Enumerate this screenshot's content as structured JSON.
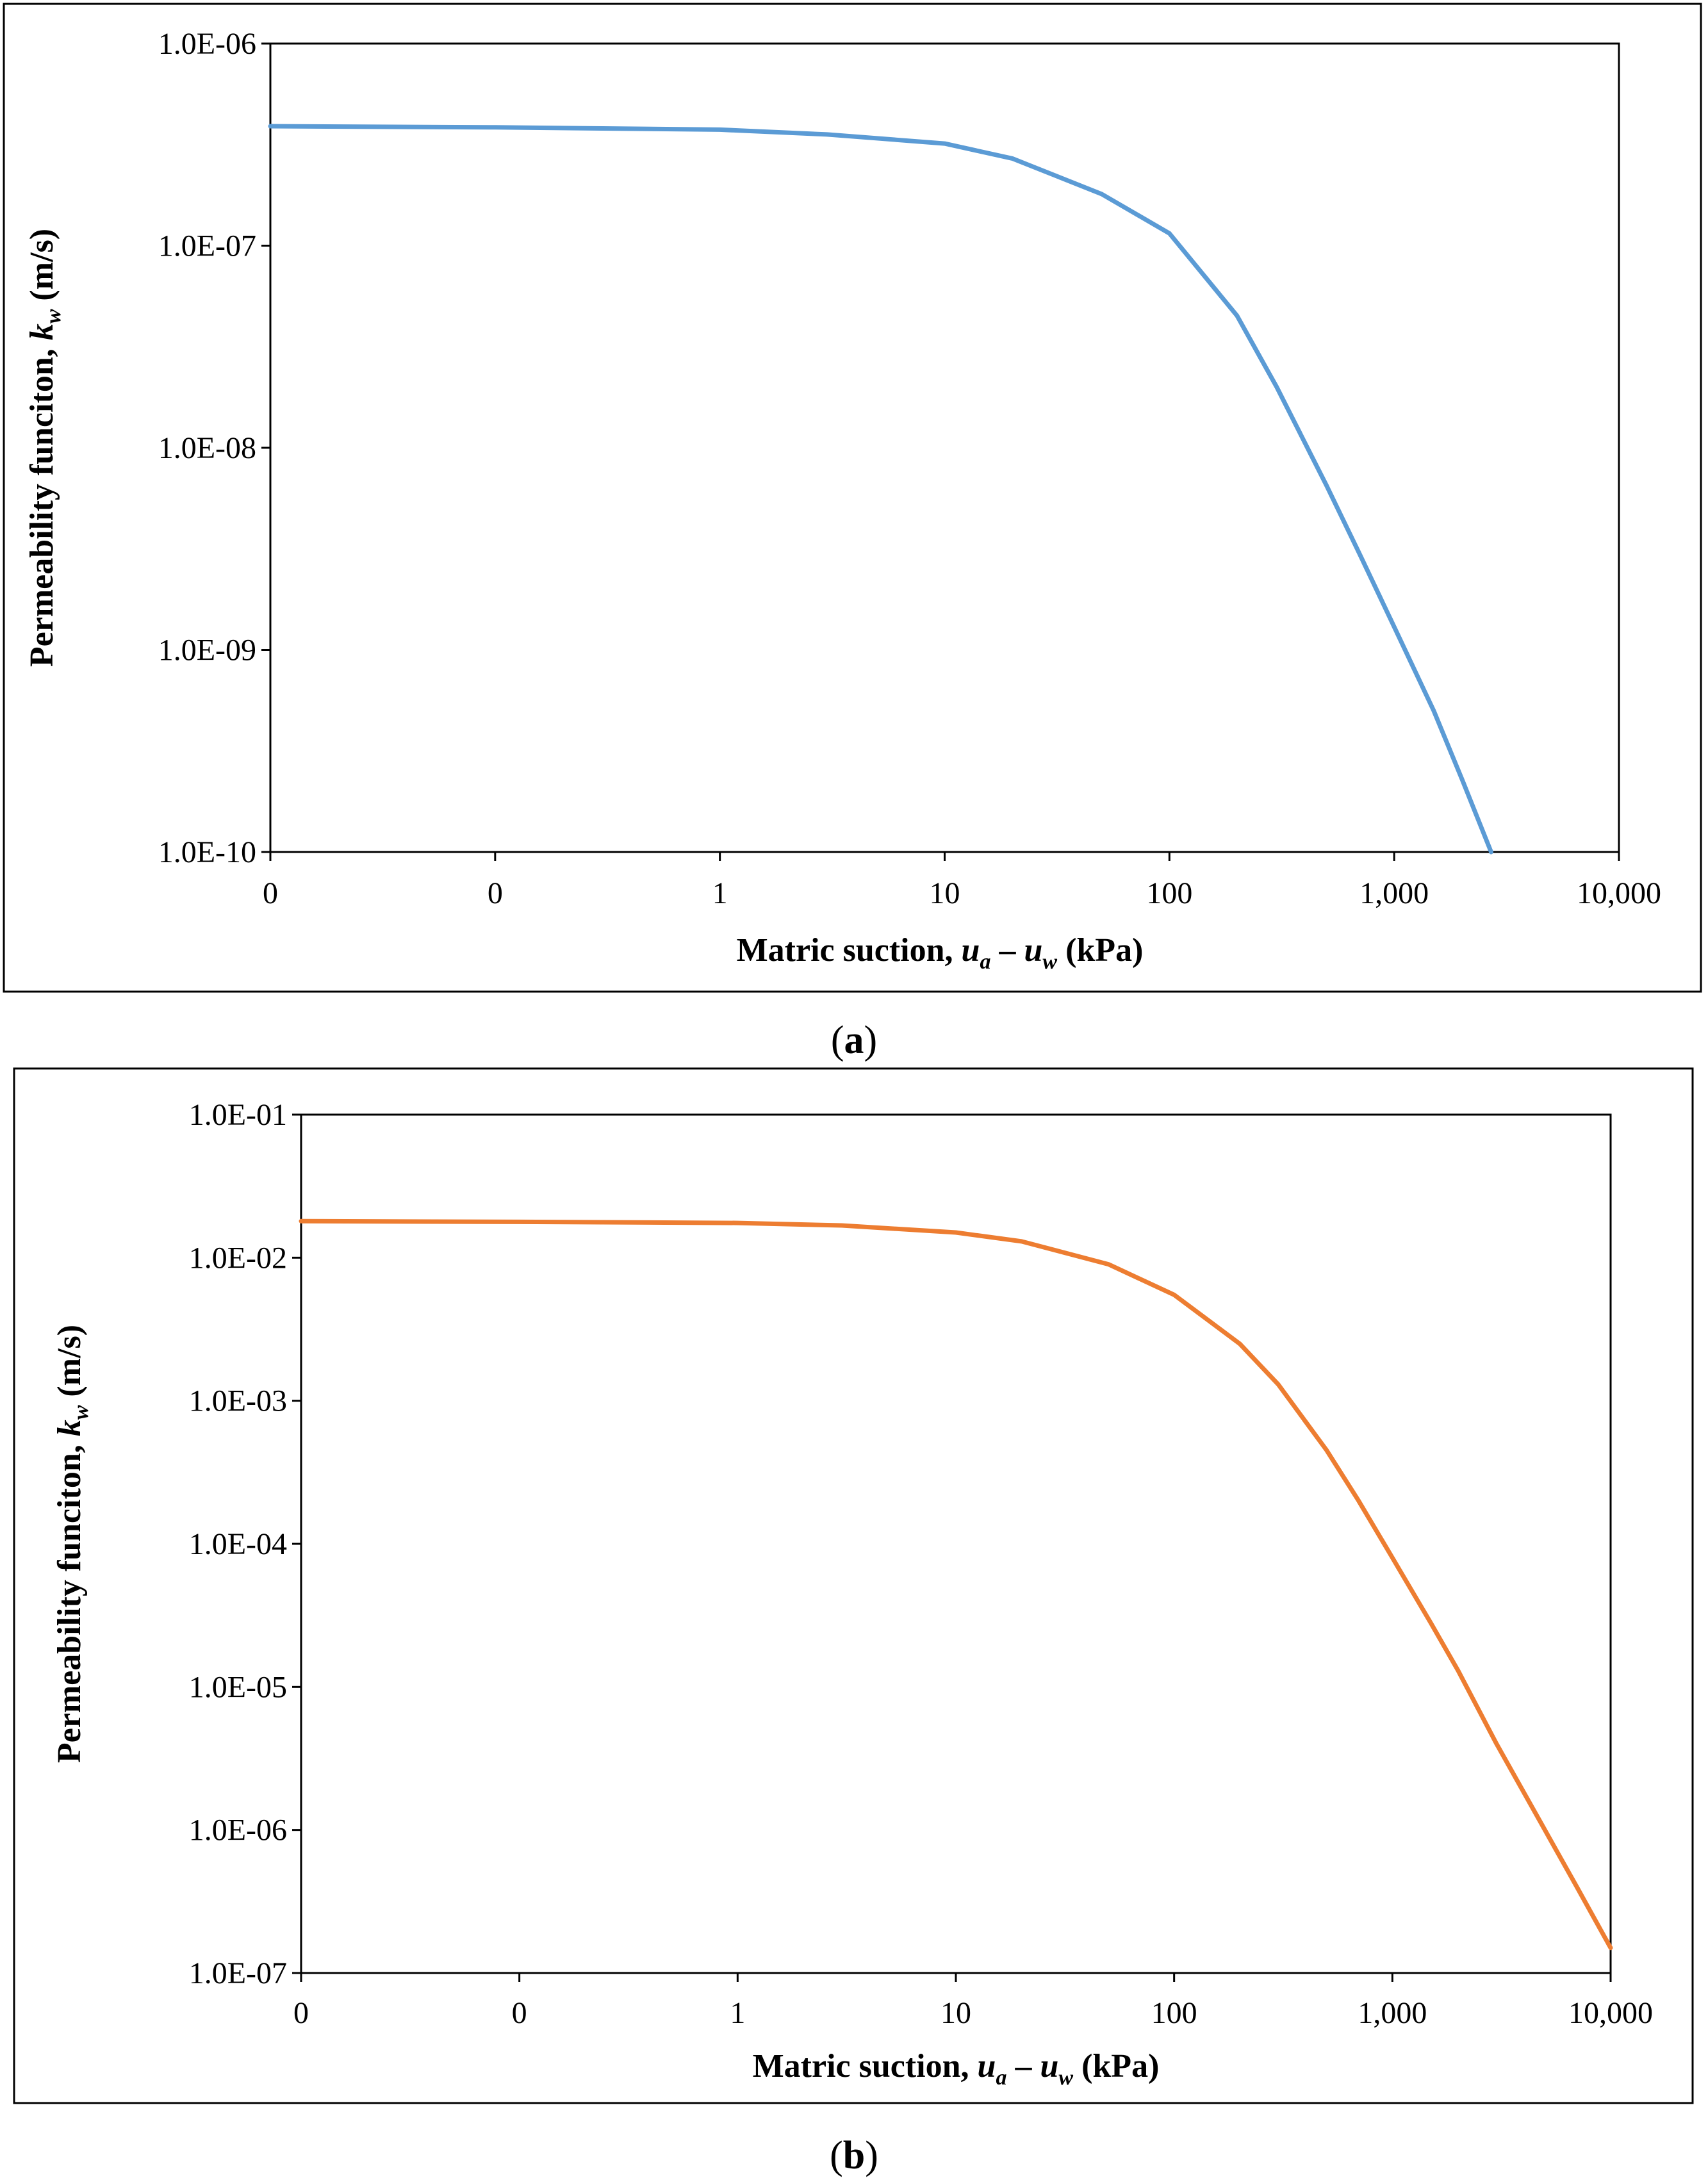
{
  "chart_data": [
    {
      "type": "line",
      "panel_label": "a",
      "xscale": "log",
      "yscale": "log",
      "xlim": [
        0.01,
        10000
      ],
      "ylim": [
        1e-10,
        1e-06
      ],
      "x_tick_labels": [
        "0",
        "0",
        "1",
        "10",
        "100",
        "1,000",
        "10,000"
      ],
      "y_tick_labels": [
        "1.0E-06",
        "1.0E-07",
        "1.0E-08",
        "1.0E-09",
        "1.0E-10"
      ],
      "xlabel": {
        "prefix": "Matric suction, ",
        "var1": "u",
        "sub1": "a",
        "mid": " – ",
        "var2": "u",
        "sub2": "w",
        "suffix": "  (kPa)"
      },
      "ylabel": {
        "prefix": "Permeability funciton, ",
        "var": "k",
        "sub": "w",
        "suffix": "   (m/s)"
      },
      "grid": false,
      "color": "#5B9BD5",
      "series": [
        {
          "x": [
            0.01,
            0.1,
            1,
            3,
            10,
            20,
            50,
            100,
            200,
            300,
            500,
            700,
            1000,
            1500,
            2000,
            2700
          ],
          "y": [
            3.9e-07,
            3.85e-07,
            3.75e-07,
            3.55e-07,
            3.2e-07,
            2.7e-07,
            1.8e-07,
            1.15e-07,
            4.5e-08,
            2e-08,
            6.5e-09,
            3e-09,
            1.3e-09,
            5e-10,
            2.3e-10,
            1e-10
          ]
        }
      ]
    },
    {
      "type": "line",
      "panel_label": "b",
      "xscale": "log",
      "yscale": "log",
      "xlim": [
        0.01,
        10000
      ],
      "ylim": [
        1e-07,
        0.1
      ],
      "x_tick_labels": [
        "0",
        "0",
        "1",
        "10",
        "100",
        "1,000",
        "10,000"
      ],
      "y_tick_labels": [
        "1.0E-01",
        "1.0E-02",
        "1.0E-03",
        "1.0E-04",
        "1.0E-05",
        "1.0E-06",
        "1.0E-07"
      ],
      "xlabel": {
        "prefix": "Matric suction, ",
        "var1": "u",
        "sub1": "a",
        "mid": " – ",
        "var2": "u",
        "sub2": "w",
        "suffix": " (kPa)"
      },
      "ylabel": {
        "prefix": "Permeability funciton, ",
        "var": "k",
        "sub": "w",
        "suffix": "  (m/s)"
      },
      "grid": false,
      "color": "#ED7D31",
      "series": [
        {
          "x": [
            0.01,
            0.1,
            1,
            3,
            10,
            20,
            50,
            100,
            200,
            300,
            500,
            700,
            1000,
            1500,
            2000,
            3000,
            5000,
            7000,
            10000
          ],
          "y": [
            0.018,
            0.0178,
            0.0175,
            0.0168,
            0.015,
            0.013,
            0.009,
            0.0055,
            0.0025,
            0.0013,
            0.00045,
            0.0002,
            8e-05,
            2.8e-05,
            1.3e-05,
            4e-06,
            1e-06,
            4e-07,
            1.5e-07
          ]
        }
      ]
    }
  ]
}
